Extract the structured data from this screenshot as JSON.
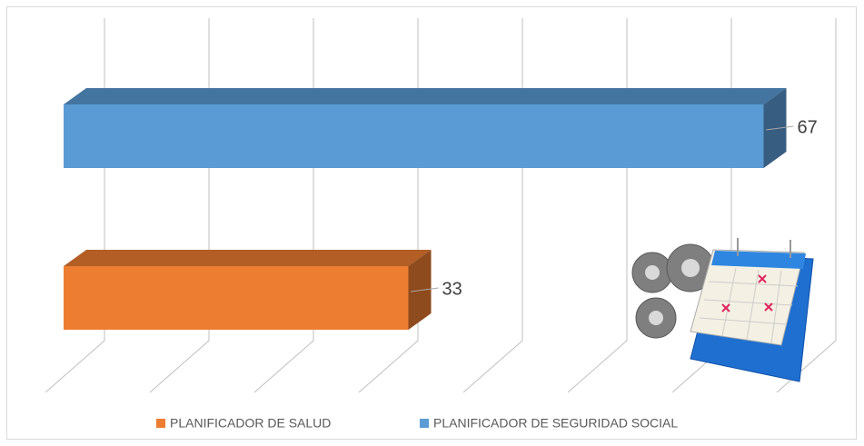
{
  "chart_data": {
    "type": "bar3d-horizontal",
    "series": [
      {
        "name": "PLANIFICADOR DE SALUD",
        "color": "#ed7d31",
        "values": [
          33
        ]
      },
      {
        "name": "PLANIFICADOR DE SEGURIDAD SOCIAL",
        "color": "#5b9bd5",
        "values": [
          67
        ]
      }
    ],
    "xlim": [
      0,
      70
    ],
    "xticks": [
      0,
      10,
      20,
      30,
      40,
      50,
      60,
      70
    ],
    "grid": true
  }
}
